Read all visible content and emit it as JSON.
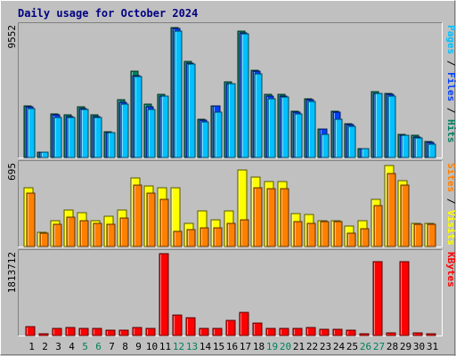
{
  "chart_data": {
    "type": "bar",
    "title": "Daily usage for October 2024",
    "x": [
      "1",
      "2",
      "3",
      "4",
      "5",
      "6",
      "7",
      "8",
      "9",
      "10",
      "11",
      "12",
      "13",
      "14",
      "15",
      "16",
      "17",
      "18",
      "19",
      "20",
      "21",
      "22",
      "23",
      "24",
      "25",
      "26",
      "27",
      "28",
      "29",
      "30",
      "31"
    ],
    "weekend_days": [
      "5",
      "6",
      "12",
      "13",
      "19",
      "20",
      "26",
      "27"
    ],
    "panels": [
      {
        "name": "hits-files-pages",
        "ymax_label": "9552",
        "ymax": 9552,
        "side_label": [
          {
            "text": "Pages",
            "color": "#00c0ff"
          },
          {
            "text": " / ",
            "color": "#000000"
          },
          {
            "text": "Files",
            "color": "#0040ff"
          },
          {
            "text": " / ",
            "color": "#000000"
          },
          {
            "text": "Hits",
            "color": "#008060"
          }
        ],
        "series": [
          {
            "name": "Hits",
            "color": "#008060",
            "values": [
              3800,
              420,
              3200,
              3100,
              3700,
              3100,
              1900,
              4200,
              6300,
              3900,
              4600,
              9500,
              7000,
              2800,
              3800,
              5500,
              9200,
              6400,
              4600,
              4600,
              3400,
              4300,
              2100,
              3400,
              2500,
              650,
              4800,
              4700,
              1700,
              1600,
              1200
            ]
          },
          {
            "name": "Files",
            "color": "#0040ff",
            "values": [
              3700,
              400,
              3100,
              3000,
              3600,
              3000,
              1800,
              4000,
              6000,
              3700,
              4500,
              9400,
              6900,
              2700,
              3800,
              5400,
              9100,
              6300,
              4500,
              4500,
              3300,
              4200,
              2100,
              3300,
              2400,
              620,
              4700,
              4600,
              1600,
              1500,
              1100
            ]
          },
          {
            "name": "Pages",
            "color": "#00c0ff",
            "values": [
              3600,
              420,
              2900,
              2900,
              3500,
              2900,
              1800,
              3900,
              5900,
              3500,
              4500,
              9200,
              6800,
              2600,
              3300,
              5400,
              9000,
              6100,
              4300,
              4400,
              3200,
              4100,
              1700,
              2800,
              2300,
              620,
              4700,
              4500,
              1600,
              1400,
              1000
            ]
          }
        ]
      },
      {
        "name": "visits-sites",
        "ymax_label": "695",
        "ymax": 695,
        "side_label": [
          {
            "text": "Sites",
            "color": "#ff8000"
          },
          {
            "text": " / ",
            "color": "#000000"
          },
          {
            "text": "Visits",
            "color": "#ffff00"
          }
        ],
        "series": [
          {
            "name": "Visits",
            "color": "#ffff00",
            "values": [
              500,
              120,
              220,
              310,
              290,
              220,
              260,
              310,
              580,
              510,
              500,
              500,
              200,
              300,
              230,
              300,
              650,
              590,
              550,
              550,
              280,
              270,
              220,
              220,
              170,
              220,
              400,
              690,
              560,
              200,
              200
            ]
          },
          {
            "name": "Sites",
            "color": "#ff8000",
            "values": [
              450,
              110,
              190,
              250,
              220,
              200,
              190,
              240,
              520,
              450,
              400,
              130,
              140,
              160,
              160,
              200,
              230,
              500,
              490,
              490,
              210,
              200,
              210,
              210,
              110,
              150,
              350,
              620,
              520,
              190,
              190
            ]
          }
        ]
      },
      {
        "name": "kbytes",
        "ymax_label": "1813712",
        "ymax": 1813712,
        "side_label": [
          {
            "text": "KBytes",
            "color": "#ff0000"
          }
        ],
        "series": [
          {
            "name": "KBytes",
            "color": "#ff0000",
            "values": [
              200000,
              40000,
              160000,
              170000,
              150000,
              150000,
              110000,
              120000,
              180000,
              150000,
              1813000,
              460000,
              390000,
              150000,
              150000,
              330000,
              520000,
              280000,
              160000,
              160000,
              150000,
              170000,
              130000,
              130000,
              120000,
              30000,
              1630000,
              50000,
              1630000,
              50000,
              40000
            ]
          }
        ]
      }
    ]
  }
}
